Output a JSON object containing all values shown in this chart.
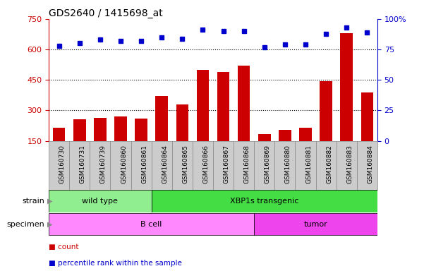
{
  "title": "GDS2640 / 1415698_at",
  "samples": [
    "GSM160730",
    "GSM160731",
    "GSM160739",
    "GSM160860",
    "GSM160861",
    "GSM160864",
    "GSM160865",
    "GSM160866",
    "GSM160867",
    "GSM160868",
    "GSM160869",
    "GSM160880",
    "GSM160881",
    "GSM160882",
    "GSM160883",
    "GSM160884"
  ],
  "counts": [
    215,
    255,
    265,
    270,
    260,
    370,
    330,
    500,
    490,
    520,
    185,
    205,
    215,
    445,
    680,
    390
  ],
  "percentiles": [
    78,
    80,
    83,
    82,
    82,
    85,
    84,
    91,
    90,
    90,
    77,
    79,
    79,
    88,
    93,
    89
  ],
  "strain_groups": [
    {
      "label": "wild type",
      "start": 0,
      "end": 5,
      "color": "#90EE90"
    },
    {
      "label": "XBP1s transgenic",
      "start": 5,
      "end": 16,
      "color": "#44DD44"
    }
  ],
  "specimen_groups": [
    {
      "label": "B cell",
      "start": 0,
      "end": 10,
      "color": "#FF88FF"
    },
    {
      "label": "tumor",
      "start": 10,
      "end": 16,
      "color": "#EE44EE"
    }
  ],
  "bar_color": "#CC0000",
  "dot_color": "#0000CC",
  "left_yticks": [
    150,
    300,
    450,
    600,
    750
  ],
  "right_yticks": [
    0,
    25,
    50,
    75,
    100
  ],
  "ylim_left": [
    150,
    750
  ],
  "ylim_right": [
    0,
    100
  ],
  "background_color": "#ffffff",
  "tick_bg_color": "#cccccc",
  "grid_color": "#000000",
  "left_axis_color": "#cc0000",
  "right_axis_color": "#0000cc"
}
